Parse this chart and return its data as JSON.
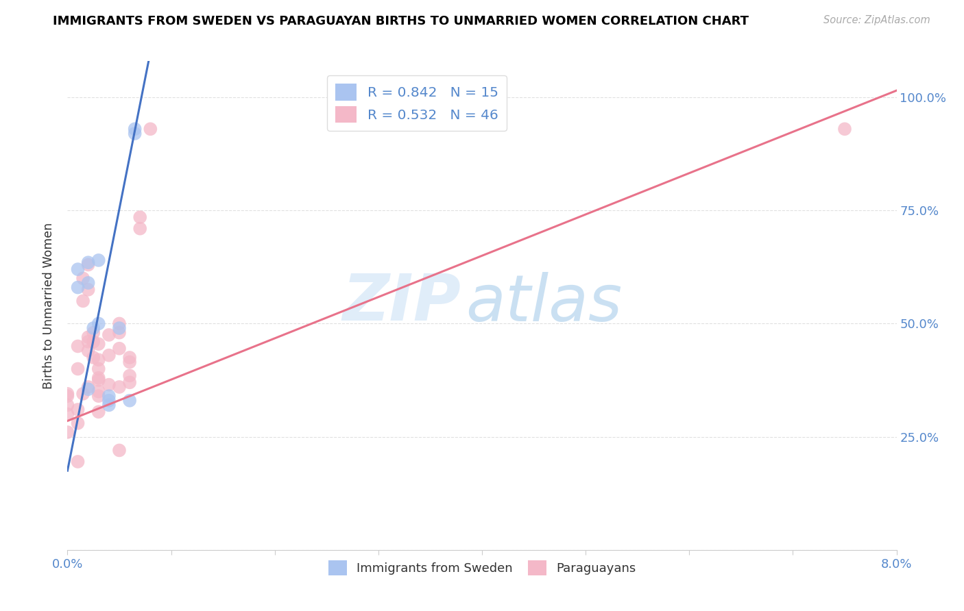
{
  "title": "IMMIGRANTS FROM SWEDEN VS PARAGUAYAN BIRTHS TO UNMARRIED WOMEN CORRELATION CHART",
  "source": "Source: ZipAtlas.com",
  "ylabel": "Births to Unmarried Women",
  "legend_blue_label": "R = 0.842   N = 15",
  "legend_pink_label": "R = 0.532   N = 46",
  "legend_label_immigrants": "Immigrants from Sweden",
  "legend_label_paraguayans": "Paraguayans",
  "blue_color": "#aac4f0",
  "pink_color": "#f4b8c8",
  "blue_line_color": "#4472c4",
  "pink_line_color": "#e8728a",
  "watermark_zip": "ZIP",
  "watermark_atlas": "atlas",
  "blue_scatter_x": [
    0.001,
    0.001,
    0.002,
    0.002,
    0.0025,
    0.003,
    0.003,
    0.004,
    0.004,
    0.004,
    0.005,
    0.006,
    0.0065,
    0.0065,
    0.002
  ],
  "blue_scatter_y": [
    0.62,
    0.58,
    0.635,
    0.59,
    0.49,
    0.64,
    0.5,
    0.34,
    0.33,
    0.32,
    0.49,
    0.33,
    0.93,
    0.92,
    0.355
  ],
  "pink_scatter_x": [
    0.0,
    0.0,
    0.0,
    0.0,
    0.001,
    0.001,
    0.001,
    0.001,
    0.001,
    0.0015,
    0.0015,
    0.002,
    0.002,
    0.002,
    0.002,
    0.002,
    0.0025,
    0.0025,
    0.0025,
    0.003,
    0.003,
    0.003,
    0.003,
    0.003,
    0.003,
    0.004,
    0.004,
    0.004,
    0.005,
    0.005,
    0.005,
    0.005,
    0.006,
    0.006,
    0.006,
    0.006,
    0.007,
    0.007,
    0.008,
    0.0,
    0.0015,
    0.002,
    0.003,
    0.003,
    0.005,
    0.075
  ],
  "pink_scatter_y": [
    0.34,
    0.32,
    0.3,
    0.26,
    0.45,
    0.4,
    0.31,
    0.28,
    0.195,
    0.6,
    0.55,
    0.63,
    0.575,
    0.47,
    0.46,
    0.36,
    0.48,
    0.46,
    0.425,
    0.455,
    0.42,
    0.4,
    0.375,
    0.34,
    0.305,
    0.475,
    0.43,
    0.365,
    0.5,
    0.48,
    0.445,
    0.36,
    0.425,
    0.415,
    0.385,
    0.37,
    0.735,
    0.71,
    0.93,
    0.345,
    0.345,
    0.44,
    0.38,
    0.35,
    0.22,
    0.93
  ],
  "blue_line_x": [
    0.0,
    0.008
  ],
  "blue_line_y": [
    0.175,
    1.1
  ],
  "pink_line_x": [
    0.0,
    0.08
  ],
  "pink_line_y": [
    0.285,
    1.015
  ],
  "xlim": [
    0.0,
    0.08
  ],
  "ylim": [
    0.0,
    1.08
  ],
  "xticks": [
    0.0,
    0.01,
    0.02,
    0.03,
    0.04,
    0.05,
    0.06,
    0.07,
    0.08
  ],
  "yticks": [
    0.0,
    0.25,
    0.5,
    0.75,
    1.0
  ],
  "right_yticklabels": [
    "",
    "25.0%",
    "50.0%",
    "75.0%",
    "100.0%"
  ],
  "grid_color": "#e0e0e0",
  "title_fontsize": 13,
  "axis_label_color": "#5588cc"
}
